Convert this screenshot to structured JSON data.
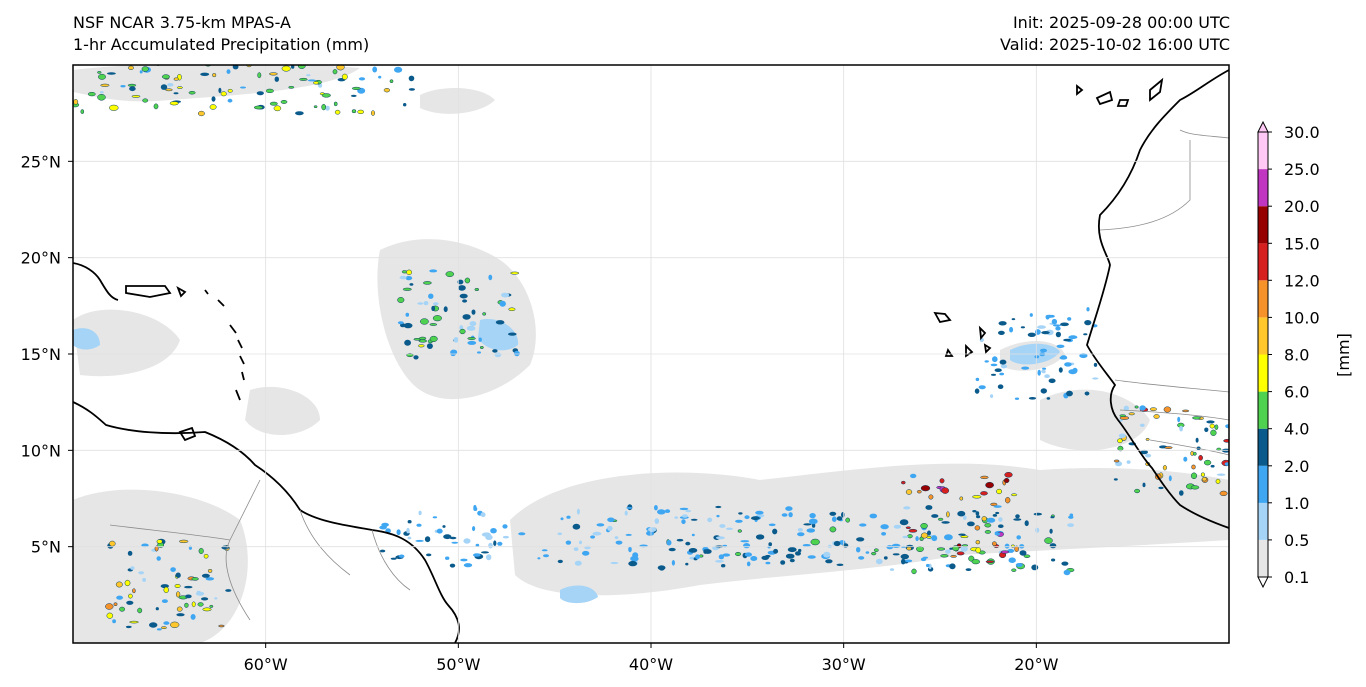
{
  "header": {
    "model": "NSF NCAR 3.75-km MPAS-A",
    "field": "1-hr Accumulated Precipitation (mm)",
    "init": "Init: 2025-09-28 00:00 UTC",
    "valid": "Valid: 2025-10-02 16:00 UTC"
  },
  "map": {
    "lon_range": [
      -70,
      -10
    ],
    "lat_range": [
      0,
      30
    ],
    "lon_ticks": [
      {
        "value": -60,
        "label": "60°W"
      },
      {
        "value": -50,
        "label": "50°W"
      },
      {
        "value": -40,
        "label": "40°W"
      },
      {
        "value": -30,
        "label": "30°W"
      },
      {
        "value": -20,
        "label": "20°W"
      }
    ],
    "lat_ticks": [
      {
        "value": 5,
        "label": "5°N"
      },
      {
        "value": 10,
        "label": "10°N"
      },
      {
        "value": 15,
        "label": "15°N"
      },
      {
        "value": 20,
        "label": "20°N"
      },
      {
        "value": 25,
        "label": "25°N"
      }
    ]
  },
  "colorbar": {
    "unit_label": "[mm]",
    "levels": [
      {
        "label": "0.1",
        "color": "#e6e6e6"
      },
      {
        "label": "0.5",
        "color": "#a6d4f7"
      },
      {
        "label": "1.0",
        "color": "#3fa6f2"
      },
      {
        "label": "2.0",
        "color": "#0a5a8c"
      },
      {
        "label": "4.0",
        "color": "#4fd24f"
      },
      {
        "label": "6.0",
        "color": "#ffff00"
      },
      {
        "label": "8.0",
        "color": "#ffc72c"
      },
      {
        "label": "10.0",
        "color": "#f5922a"
      },
      {
        "label": "12.0",
        "color": "#d61f1f"
      },
      {
        "label": "15.0",
        "color": "#960000"
      },
      {
        "label": "20.0",
        "color": "#c036c0"
      },
      {
        "label": "25.0",
        "color": "#ffc8f5"
      },
      {
        "label": "30.0",
        "color": ""
      }
    ]
  },
  "precip_regions": [
    {
      "name": "itcz-band-main",
      "lon": -30,
      "lat": 5.2,
      "level": 3
    },
    {
      "name": "itcz-band-west",
      "lon": -42,
      "lat": 5.5,
      "level": 2
    },
    {
      "name": "east-atlantic-core",
      "lon": -24,
      "lat": 6.5,
      "level": 9
    },
    {
      "name": "tropical-disturbance",
      "lon": -50,
      "lat": 17,
      "level": 4
    },
    {
      "name": "cape-verde-area",
      "lon": -20,
      "lat": 15,
      "level": 2
    },
    {
      "name": "south-america-convection",
      "lon": -65,
      "lat": 3,
      "level": 6
    },
    {
      "name": "west-africa-convection",
      "lon": -13,
      "lat": 10,
      "level": 7
    },
    {
      "name": "northwest-band",
      "lon": -64,
      "lat": 29,
      "level": 5
    }
  ]
}
